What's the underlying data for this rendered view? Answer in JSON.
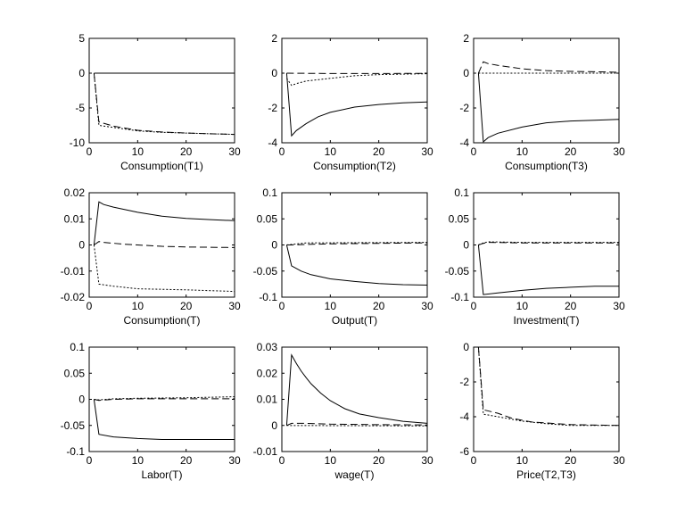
{
  "chart_data": [
    {
      "type": "line",
      "xlabel": "Consumption(T1)",
      "xlim": [
        0,
        30
      ],
      "ylim": [
        -10,
        5
      ],
      "xticks": [
        0,
        10,
        20,
        30
      ],
      "yticks": [
        5,
        0,
        -5,
        -10
      ],
      "grid": false,
      "series": [
        {
          "style": "solid",
          "x": [
            1,
            30
          ],
          "y": [
            0,
            0
          ]
        },
        {
          "style": "dashed",
          "x": [
            1,
            2,
            5,
            10,
            15,
            20,
            25,
            30
          ],
          "y": [
            0,
            -7,
            -7.6,
            -8.2,
            -8.45,
            -8.6,
            -8.7,
            -8.8
          ]
        },
        {
          "style": "dotted",
          "x": [
            1,
            2,
            5,
            10,
            15,
            20,
            25,
            30
          ],
          "y": [
            0,
            -7.5,
            -7.8,
            -8.3,
            -8.5,
            -8.6,
            -8.7,
            -8.8
          ]
        }
      ]
    },
    {
      "type": "line",
      "xlabel": "Consumption(T2)",
      "xlim": [
        0,
        30
      ],
      "ylim": [
        -4,
        2
      ],
      "xticks": [
        0,
        10,
        20,
        30
      ],
      "yticks": [
        2,
        0,
        -2,
        -4
      ],
      "grid": false,
      "series": [
        {
          "style": "solid",
          "x": [
            1,
            2,
            3,
            5,
            7.5,
            10,
            15,
            20,
            25,
            30
          ],
          "y": [
            0,
            -3.6,
            -3.3,
            -2.9,
            -2.5,
            -2.25,
            -1.95,
            -1.8,
            -1.7,
            -1.65
          ]
        },
        {
          "style": "dashed",
          "x": [
            1,
            10,
            20,
            30
          ],
          "y": [
            0,
            -0.02,
            -0.02,
            -0.01
          ]
        },
        {
          "style": "dotted",
          "x": [
            1,
            2,
            3,
            5,
            10,
            15,
            20,
            30
          ],
          "y": [
            -0.3,
            -0.7,
            -0.6,
            -0.45,
            -0.3,
            -0.15,
            -0.08,
            -0.03
          ]
        }
      ]
    },
    {
      "type": "line",
      "xlabel": "Consumption(T3)",
      "xlim": [
        0,
        30
      ],
      "ylim": [
        -4,
        2
      ],
      "xticks": [
        0,
        10,
        20,
        30
      ],
      "yticks": [
        2,
        0,
        -2,
        -4
      ],
      "grid": false,
      "series": [
        {
          "style": "solid",
          "x": [
            1,
            2,
            3,
            5,
            10,
            15,
            20,
            25,
            30
          ],
          "y": [
            0,
            -3.95,
            -3.7,
            -3.45,
            -3.1,
            -2.85,
            -2.75,
            -2.7,
            -2.65
          ]
        },
        {
          "style": "dashed",
          "x": [
            1,
            2,
            3,
            5,
            10,
            15,
            20,
            25,
            30
          ],
          "y": [
            0,
            0.65,
            0.55,
            0.45,
            0.25,
            0.15,
            0.1,
            0.08,
            0.05
          ]
        },
        {
          "style": "dotted",
          "x": [
            1,
            30
          ],
          "y": [
            0,
            0
          ]
        }
      ]
    },
    {
      "type": "line",
      "xlabel": "Consumption(T)",
      "xlim": [
        0,
        30
      ],
      "ylim": [
        -0.02,
        0.02
      ],
      "xticks": [
        0,
        10,
        20,
        30
      ],
      "yticks": [
        0.02,
        0.01,
        0,
        -0.01,
        -0.02
      ],
      "grid": false,
      "series": [
        {
          "style": "solid",
          "x": [
            1,
            2,
            3,
            5,
            10,
            15,
            20,
            25,
            30
          ],
          "y": [
            0,
            0.0165,
            0.0155,
            0.0145,
            0.0125,
            0.011,
            0.0102,
            0.0097,
            0.0093
          ]
        },
        {
          "style": "dashed",
          "x": [
            1,
            2,
            3,
            7,
            10,
            15,
            20,
            30
          ],
          "y": [
            0,
            0.0013,
            0.001,
            0.0003,
            0,
            -0.0005,
            -0.0008,
            -0.001
          ]
        },
        {
          "style": "dotted",
          "x": [
            1,
            2,
            5,
            10,
            20,
            30
          ],
          "y": [
            0,
            -0.015,
            -0.0158,
            -0.0168,
            -0.0172,
            -0.0178
          ]
        }
      ]
    },
    {
      "type": "line",
      "xlabel": "Output(T)",
      "xlim": [
        0,
        30
      ],
      "ylim": [
        -0.1,
        0.1
      ],
      "xticks": [
        0,
        10,
        20,
        30
      ],
      "yticks": [
        0.1,
        0.05,
        0,
        -0.05,
        -0.1
      ],
      "grid": false,
      "series": [
        {
          "style": "solid",
          "x": [
            1,
            2,
            4,
            6,
            10,
            15,
            20,
            25,
            30
          ],
          "y": [
            0,
            -0.04,
            -0.05,
            -0.057,
            -0.065,
            -0.07,
            -0.074,
            -0.076,
            -0.077
          ]
        },
        {
          "style": "dashed",
          "x": [
            1,
            2,
            5,
            10,
            20,
            30
          ],
          "y": [
            0,
            0,
            0.001,
            0.002,
            0.003,
            0.004
          ]
        },
        {
          "style": "dotted",
          "x": [
            1,
            2,
            5,
            30
          ],
          "y": [
            0,
            0.001,
            0.004,
            0.005
          ]
        }
      ]
    },
    {
      "type": "line",
      "xlabel": "Investment(T)",
      "xlim": [
        0,
        30
      ],
      "ylim": [
        -0.1,
        0.1
      ],
      "xticks": [
        0,
        10,
        20,
        30
      ],
      "yticks": [
        0.1,
        0.05,
        0,
        -0.05,
        -0.1
      ],
      "grid": false,
      "series": [
        {
          "style": "solid",
          "x": [
            1,
            2,
            5,
            10,
            15,
            20,
            25,
            30
          ],
          "y": [
            0,
            -0.095,
            -0.092,
            -0.087,
            -0.083,
            -0.081,
            -0.079,
            -0.079
          ]
        },
        {
          "style": "dashed",
          "x": [
            1,
            2,
            3,
            10,
            30
          ],
          "y": [
            0,
            0.003,
            0.005,
            0.004,
            0.004
          ]
        },
        {
          "style": "dotted",
          "x": [
            1,
            2,
            3,
            10,
            30
          ],
          "y": [
            0,
            0.004,
            0.006,
            0.005,
            0.005
          ]
        }
      ]
    },
    {
      "type": "line",
      "xlabel": "Labor(T)",
      "xlim": [
        0,
        30
      ],
      "ylim": [
        -0.1,
        0.1
      ],
      "xticks": [
        0,
        10,
        20,
        30
      ],
      "yticks": [
        0.1,
        0.05,
        0,
        -0.05,
        -0.1
      ],
      "grid": false,
      "series": [
        {
          "style": "solid",
          "x": [
            1,
            2,
            5,
            10,
            15,
            30
          ],
          "y": [
            0,
            -0.067,
            -0.072,
            -0.075,
            -0.077,
            -0.077
          ]
        },
        {
          "style": "dashed",
          "x": [
            1,
            2,
            5,
            10,
            30
          ],
          "y": [
            0,
            -0.002,
            0,
            0.001,
            0.001
          ]
        },
        {
          "style": "dotted",
          "x": [
            1,
            2,
            5,
            10,
            20,
            30
          ],
          "y": [
            0,
            -0.001,
            0.001,
            0.002,
            0.003,
            0.005
          ]
        }
      ]
    },
    {
      "type": "line",
      "xlabel": "wage(T)",
      "xlim": [
        0,
        30
      ],
      "ylim": [
        -0.01,
        0.03
      ],
      "xticks": [
        0,
        10,
        20,
        30
      ],
      "yticks": [
        0.03,
        0.02,
        0.01,
        0,
        -0.01
      ],
      "grid": false,
      "series": [
        {
          "style": "solid",
          "x": [
            1,
            2,
            3,
            4,
            5,
            6,
            8,
            10,
            13,
            16,
            20,
            25,
            30
          ],
          "y": [
            0,
            0.027,
            0.0237,
            0.0208,
            0.0183,
            0.016,
            0.0124,
            0.0095,
            0.0064,
            0.0044,
            0.003,
            0.0016,
            0.0008
          ]
        },
        {
          "style": "dashed",
          "x": [
            1,
            2,
            5,
            10,
            20,
            30
          ],
          "y": [
            0,
            0.0008,
            0.0008,
            0.0005,
            0.0003,
            0.0002
          ]
        },
        {
          "style": "dotted",
          "x": [
            1,
            30
          ],
          "y": [
            0,
            -0.0002
          ]
        }
      ]
    },
    {
      "type": "line",
      "xlabel": "Price(T2,T3)",
      "xlim": [
        0,
        30
      ],
      "ylim": [
        -6,
        0
      ],
      "xticks": [
        0,
        10,
        20,
        30
      ],
      "yticks": [
        0,
        -2,
        -4,
        -6
      ],
      "grid": false,
      "series": [
        {
          "style": "solid",
          "x": [
            1,
            30
          ],
          "y": [
            0,
            0
          ]
        },
        {
          "style": "dashed",
          "x": [
            1,
            2,
            5,
            8,
            12,
            20,
            30
          ],
          "y": [
            0,
            -3.6,
            -3.8,
            -4.1,
            -4.3,
            -4.45,
            -4.5
          ]
        },
        {
          "style": "dotted",
          "x": [
            1,
            2,
            5,
            10,
            15,
            20,
            30
          ],
          "y": [
            0,
            -3.85,
            -4.0,
            -4.25,
            -4.4,
            -4.5,
            -4.5
          ]
        }
      ]
    }
  ]
}
